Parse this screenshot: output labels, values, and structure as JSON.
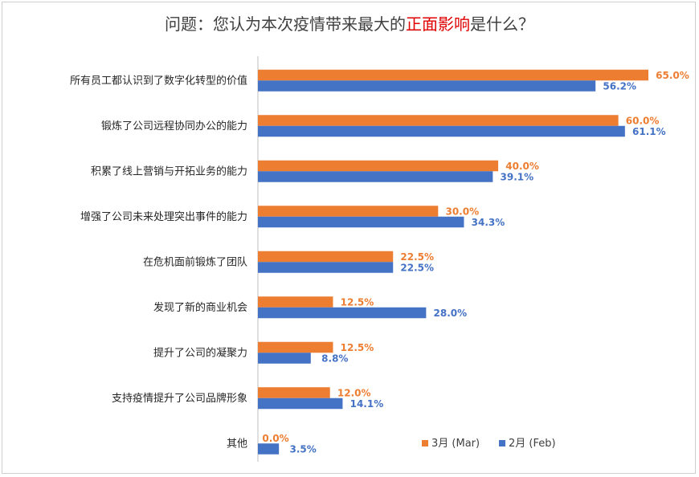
{
  "title": {
    "prefix": "问题：您认为本次疫情带来最大的",
    "highlight": "正面影响",
    "suffix": "是什么？"
  },
  "colors": {
    "mar": "#ED7D31",
    "feb": "#4472C4",
    "highlight": "#e00000"
  },
  "chart_data": {
    "type": "bar",
    "orientation": "horizontal",
    "categories": [
      "所有员工都认识到了数字化转型的价值",
      "锻炼了公司远程协同办公的能力",
      "积累了线上营销与开拓业务的能力",
      "增强了公司未来处理突出事件的能力",
      "在危机面前锻炼了团队",
      "发现了新的商业机会",
      "提升了公司的凝聚力",
      "支持疫情提升了公司品牌形象",
      "其他"
    ],
    "series": [
      {
        "name": "3月 (Mar)",
        "values": [
          65.0,
          60.0,
          40.0,
          30.0,
          22.5,
          12.5,
          12.5,
          12.0,
          0.0
        ],
        "labels": [
          "65.0%",
          "60.0%",
          "40.0%",
          "30.0%",
          "22.5%",
          "12.5%",
          "12.5%",
          "12.0%",
          "0.0%"
        ]
      },
      {
        "name": "2月 (Feb)",
        "values": [
          56.2,
          61.1,
          39.1,
          34.3,
          22.5,
          28.0,
          8.8,
          14.1,
          3.5
        ],
        "labels": [
          "56.2%",
          "61.1%",
          "39.1%",
          "34.3%",
          "22.5%",
          "28.0%",
          "8.8%",
          "14.1%",
          "3.5%"
        ]
      }
    ],
    "xlim": [
      0,
      65
    ],
    "grid": false,
    "legend_position": "bottom-right"
  }
}
